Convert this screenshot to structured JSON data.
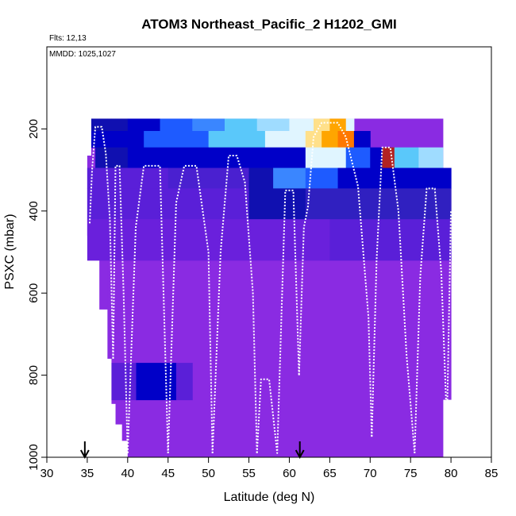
{
  "chart_data": {
    "type": "heatmap",
    "title": "ATOM3 Northeast_Pacific_2 H1202_GMI",
    "flights_note": "Flts: 12,13",
    "dates_note": "MMDD: 1025,1027",
    "xlabel": "Latitude (deg N)",
    "ylabel": "PSXC (mbar)",
    "xlim": [
      30,
      85
    ],
    "ylim": [
      1000,
      0
    ],
    "x_ticks": [
      30,
      35,
      40,
      45,
      50,
      55,
      60,
      65,
      70,
      75,
      80,
      85
    ],
    "y_ticks": [
      200,
      400,
      600,
      800,
      1000
    ],
    "colormap": [
      "#8a2be2",
      "#5a1fd8",
      "#1010b0",
      "#0000c8",
      "#1e5bff",
      "#5ac8fa",
      "#e0f5ff",
      "#ffe08a",
      "#ffa500",
      "#ff7800",
      "#b22222"
    ],
    "background_fill": "#8a2be2",
    "arrows": [
      34.7,
      61.3
    ],
    "cells": [
      {
        "x0": 35.5,
        "x1": 40,
        "p0": 175,
        "p1": 205,
        "color": "#1010b0"
      },
      {
        "x0": 40,
        "x1": 44,
        "p0": 175,
        "p1": 205,
        "color": "#0000c8"
      },
      {
        "x0": 44,
        "x1": 48,
        "p0": 175,
        "p1": 205,
        "color": "#1e5bff"
      },
      {
        "x0": 48,
        "x1": 52,
        "p0": 175,
        "p1": 205,
        "color": "#3a86ff"
      },
      {
        "x0": 52,
        "x1": 56,
        "p0": 175,
        "p1": 205,
        "color": "#5ac8fa"
      },
      {
        "x0": 56,
        "x1": 60,
        "p0": 175,
        "p1": 205,
        "color": "#9fdcff"
      },
      {
        "x0": 60,
        "x1": 63,
        "p0": 175,
        "p1": 205,
        "color": "#e0f5ff"
      },
      {
        "x0": 63,
        "x1": 65,
        "p0": 175,
        "p1": 205,
        "color": "#ffe08a"
      },
      {
        "x0": 65,
        "x1": 67,
        "p0": 175,
        "p1": 205,
        "color": "#ffa500"
      },
      {
        "x0": 67,
        "x1": 68,
        "p0": 175,
        "p1": 205,
        "color": "#e0f5ff"
      },
      {
        "x0": 35.5,
        "x1": 42,
        "p0": 205,
        "p1": 245,
        "color": "#0000c8"
      },
      {
        "x0": 42,
        "x1": 50,
        "p0": 205,
        "p1": 245,
        "color": "#1e5bff"
      },
      {
        "x0": 50,
        "x1": 57,
        "p0": 205,
        "p1": 245,
        "color": "#5ac8fa"
      },
      {
        "x0": 57,
        "x1": 62,
        "p0": 205,
        "p1": 245,
        "color": "#e0f5ff"
      },
      {
        "x0": 62,
        "x1": 64,
        "p0": 205,
        "p1": 245,
        "color": "#ffe08a"
      },
      {
        "x0": 64,
        "x1": 66,
        "p0": 205,
        "p1": 245,
        "color": "#ffa500"
      },
      {
        "x0": 66,
        "x1": 68,
        "p0": 205,
        "p1": 245,
        "color": "#ff7800"
      },
      {
        "x0": 68,
        "x1": 70,
        "p0": 205,
        "p1": 245,
        "color": "#0000c8"
      },
      {
        "x0": 36,
        "x1": 40,
        "p0": 245,
        "p1": 295,
        "color": "#1010b0"
      },
      {
        "x0": 40,
        "x1": 50,
        "p0": 245,
        "p1": 295,
        "color": "#0000c8"
      },
      {
        "x0": 50,
        "x1": 62,
        "p0": 245,
        "p1": 295,
        "color": "#0000c8"
      },
      {
        "x0": 62,
        "x1": 67,
        "p0": 245,
        "p1": 295,
        "color": "#e0f5ff"
      },
      {
        "x0": 67,
        "x1": 70,
        "p0": 245,
        "p1": 295,
        "color": "#1e5bff"
      },
      {
        "x0": 70,
        "x1": 71.5,
        "p0": 245,
        "p1": 295,
        "color": "#0000c8"
      },
      {
        "x0": 71.5,
        "x1": 73,
        "p0": 245,
        "p1": 295,
        "color": "#b22222"
      },
      {
        "x0": 73,
        "x1": 76,
        "p0": 245,
        "p1": 295,
        "color": "#5ac8fa"
      },
      {
        "x0": 76,
        "x1": 79,
        "p0": 245,
        "p1": 295,
        "color": "#9fdcff"
      },
      {
        "x0": 35,
        "x1": 45,
        "p0": 295,
        "p1": 345,
        "color": "#5a1fd8"
      },
      {
        "x0": 45,
        "x1": 55,
        "p0": 295,
        "p1": 345,
        "color": "#4a20d0"
      },
      {
        "x0": 55,
        "x1": 58,
        "p0": 295,
        "p1": 345,
        "color": "#1010b0"
      },
      {
        "x0": 58,
        "x1": 62,
        "p0": 295,
        "p1": 345,
        "color": "#3a86ff"
      },
      {
        "x0": 62,
        "x1": 66,
        "p0": 295,
        "p1": 345,
        "color": "#1e5bff"
      },
      {
        "x0": 66,
        "x1": 72,
        "p0": 295,
        "p1": 345,
        "color": "#0000c8"
      },
      {
        "x0": 72,
        "x1": 80,
        "p0": 295,
        "p1": 345,
        "color": "#0000c8"
      },
      {
        "x0": 35,
        "x1": 45,
        "p0": 345,
        "p1": 420,
        "color": "#5a1fd8"
      },
      {
        "x0": 45,
        "x1": 55,
        "p0": 345,
        "p1": 420,
        "color": "#5a1fd8"
      },
      {
        "x0": 55,
        "x1": 62,
        "p0": 345,
        "p1": 420,
        "color": "#1010b0"
      },
      {
        "x0": 62,
        "x1": 70,
        "p0": 345,
        "p1": 420,
        "color": "#3020c0"
      },
      {
        "x0": 70,
        "x1": 80,
        "p0": 345,
        "p1": 420,
        "color": "#3020c0"
      },
      {
        "x0": 35,
        "x1": 50,
        "p0": 420,
        "p1": 520,
        "color": "#6a20dc"
      },
      {
        "x0": 50,
        "x1": 65,
        "p0": 420,
        "p1": 520,
        "color": "#6a20dc"
      },
      {
        "x0": 65,
        "x1": 80,
        "p0": 420,
        "p1": 520,
        "color": "#5a1fd8"
      },
      {
        "x0": 41,
        "x1": 46,
        "p0": 770,
        "p1": 860,
        "color": "#0000c8"
      },
      {
        "x0": 38,
        "x1": 41,
        "p0": 770,
        "p1": 860,
        "color": "#5a1fd8"
      },
      {
        "x0": 46,
        "x1": 48,
        "p0": 770,
        "p1": 860,
        "color": "#5a1fd8"
      }
    ],
    "column_extents": [
      {
        "x0": 35,
        "x1": 35.5,
        "p0": 265,
        "p1": 460
      },
      {
        "x0": 35.5,
        "x1": 36.5,
        "p0": 175,
        "p1": 480
      },
      {
        "x0": 36.5,
        "x1": 37.5,
        "p0": 175,
        "p1": 640
      },
      {
        "x0": 37.5,
        "x1": 38,
        "p0": 175,
        "p1": 760
      },
      {
        "x0": 38,
        "x1": 38.5,
        "p0": 175,
        "p1": 870
      },
      {
        "x0": 38.5,
        "x1": 39.3,
        "p0": 175,
        "p1": 920
      },
      {
        "x0": 39.3,
        "x1": 40,
        "p0": 175,
        "p1": 960
      },
      {
        "x0": 40,
        "x1": 79,
        "p0": 175,
        "p1": 1000
      },
      {
        "x0": 79,
        "x1": 80,
        "p0": 295,
        "p1": 860
      }
    ],
    "profiles": [
      {
        "x": [
          35.3,
          35.6,
          36.0,
          36.8,
          37.3,
          37.8,
          38.2
        ],
        "p": [
          430,
          300,
          195,
          195,
          260,
          420,
          760
        ]
      },
      {
        "x": [
          38.2,
          38.5,
          39.0,
          39.5,
          40.0
        ],
        "p": [
          760,
          290,
          290,
          600,
          990
        ]
      },
      {
        "x": [
          40.0,
          41.0,
          42.0,
          44.0,
          45.0
        ],
        "p": [
          990,
          440,
          290,
          290,
          990
        ]
      },
      {
        "x": [
          45.0,
          46.0,
          47.0,
          48.5,
          50.0,
          50.5
        ],
        "p": [
          990,
          380,
          290,
          290,
          500,
          990
        ]
      },
      {
        "x": [
          50.5,
          51.5,
          52.5,
          53.5,
          54.5,
          55.5,
          56.0
        ],
        "p": [
          990,
          500,
          265,
          265,
          330,
          600,
          990
        ]
      },
      {
        "x": [
          56.0,
          56.5,
          57.5,
          58.5,
          59.5,
          60.5,
          61.2
        ],
        "p": [
          990,
          810,
          810,
          990,
          350,
          350,
          800
        ]
      },
      {
        "x": [
          61.2,
          61.8,
          62.3,
          63.0,
          64.0,
          66.0,
          67.0,
          68.5,
          69.8,
          70.2
        ],
        "p": [
          800,
          440,
          390,
          220,
          185,
          185,
          220,
          340,
          660,
          950
        ]
      },
      {
        "x": [
          70.2,
          70.8,
          71.5,
          72.5,
          73.5,
          74.5,
          75.5
        ],
        "p": [
          950,
          520,
          245,
          245,
          400,
          750,
          990
        ]
      },
      {
        "x": [
          75.5,
          76.2,
          77.0,
          78.0,
          78.8,
          79.5,
          80.0
        ],
        "p": [
          990,
          560,
          345,
          345,
          550,
          920,
          400
        ]
      }
    ]
  }
}
